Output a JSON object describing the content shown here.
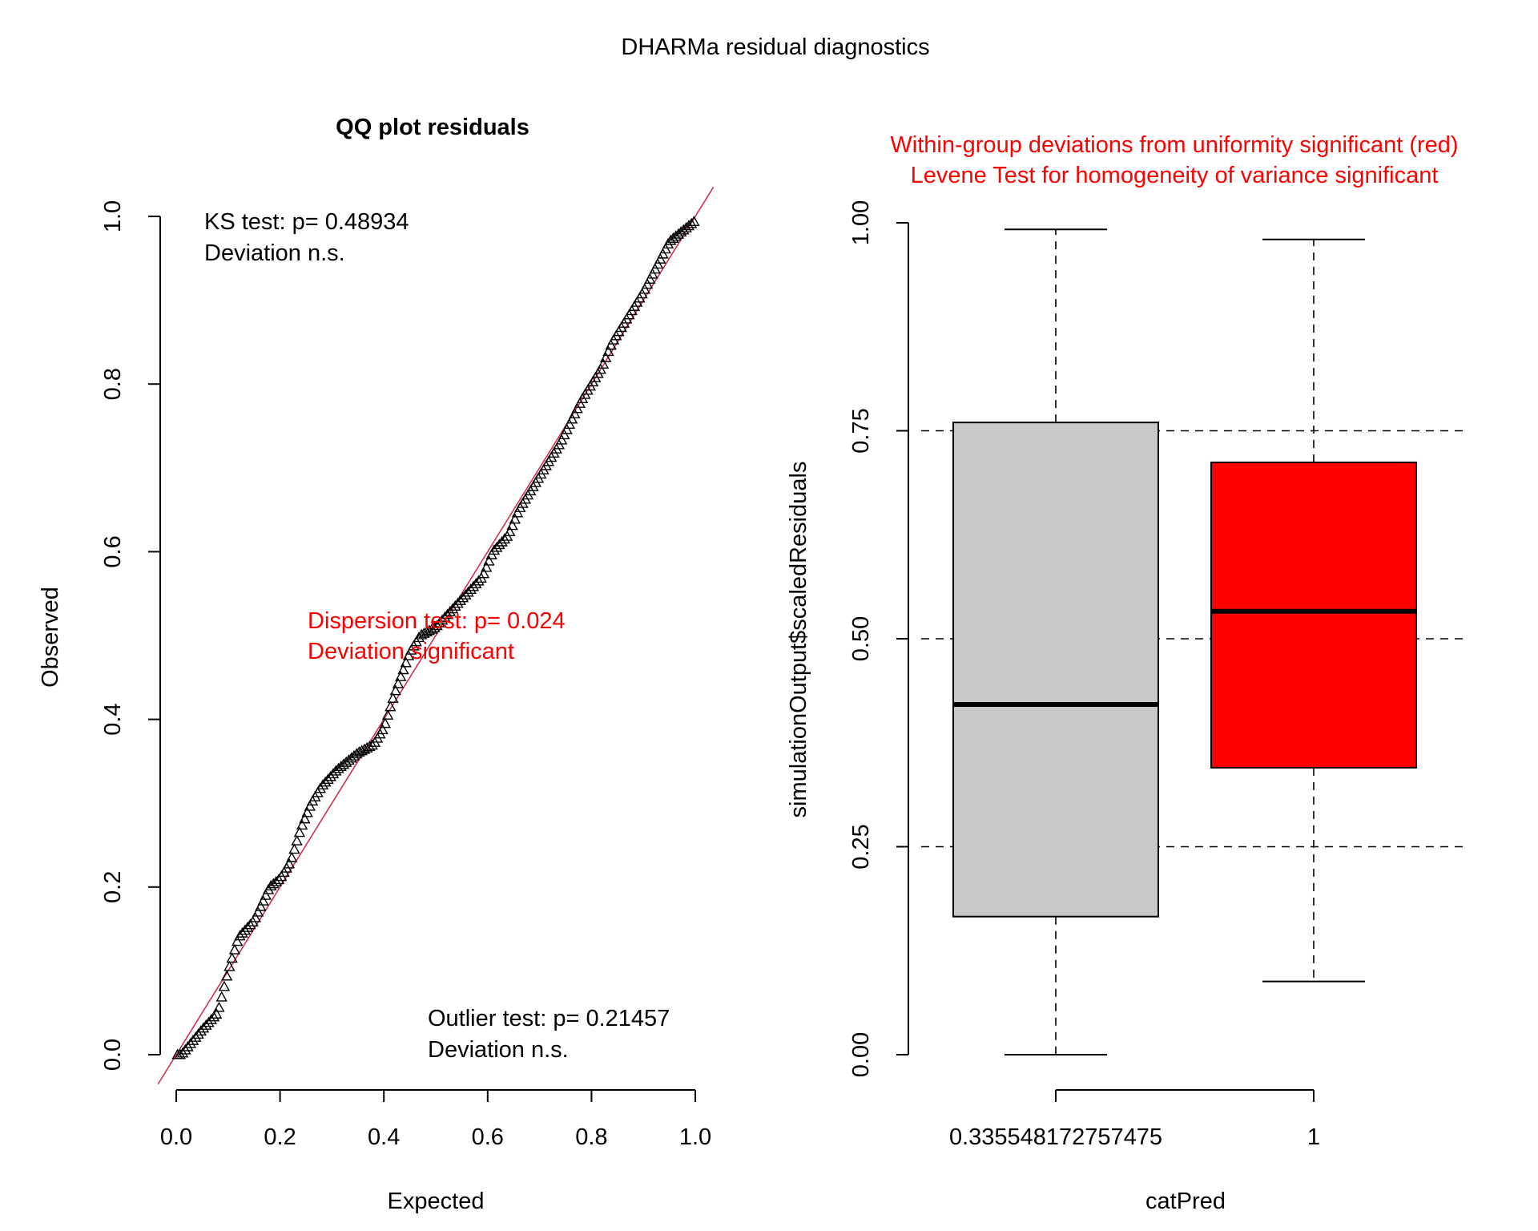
{
  "figure": {
    "title": "DHARMa residual diagnostics"
  },
  "colors": {
    "text": "#000000",
    "significant": "#ff0000",
    "reference_line": "#d03050",
    "box_gray": "#c8c8c8",
    "box_red": "#ff0000"
  },
  "qq_panel": {
    "title": "QQ plot residuals",
    "ks_text_1": "KS test: p= 0.48934",
    "ks_text_2": "Deviation  n.s.",
    "disp_text_1": "Dispersion test: p= 0.024",
    "disp_text_2": "Deviation  significant",
    "outlier_text_1": "Outlier test: p= 0.21457",
    "outlier_text_2": "Deviation  n.s."
  },
  "box_panel": {
    "title_line_1": "Within-group deviations from uniformity significant (red)",
    "title_line_2": "Levene Test for homogeneity of variance significant"
  },
  "chart_data": [
    {
      "type": "scatter",
      "title": "QQ plot residuals",
      "xlabel": "Expected",
      "ylabel": "Observed",
      "xlim": [
        0,
        1
      ],
      "ylim": [
        0,
        1
      ],
      "xticks": [
        "0.0",
        "0.2",
        "0.4",
        "0.6",
        "0.8",
        "1.0"
      ],
      "yticks": [
        "0.0",
        "0.2",
        "0.4",
        "0.6",
        "0.8",
        "1.0"
      ],
      "marker": "triangle",
      "reference_line": {
        "slope": 1,
        "intercept": 0
      },
      "curve_anchors": {
        "x": [
          0.01,
          0.05,
          0.08,
          0.1,
          0.12,
          0.15,
          0.18,
          0.2,
          0.22,
          0.24,
          0.26,
          0.28,
          0.31,
          0.35,
          0.38,
          0.4,
          0.42,
          0.45,
          0.47,
          0.5,
          0.53,
          0.56,
          0.59,
          0.61,
          0.64,
          0.66,
          0.7,
          0.74,
          0.78,
          0.8,
          0.82,
          0.84,
          0.86,
          0.9,
          0.95,
          1.0
        ],
        "y": [
          0.0,
          0.03,
          0.05,
          0.1,
          0.14,
          0.16,
          0.2,
          0.21,
          0.23,
          0.27,
          0.3,
          0.32,
          0.34,
          0.36,
          0.37,
          0.39,
          0.43,
          0.48,
          0.5,
          0.51,
          0.53,
          0.55,
          0.57,
          0.6,
          0.62,
          0.65,
          0.69,
          0.73,
          0.78,
          0.8,
          0.82,
          0.85,
          0.87,
          0.91,
          0.97,
          0.995
        ]
      },
      "n_points": 200
    },
    {
      "type": "box",
      "xlabel": "catPred",
      "ylabel": "simulationOutput$scaledResiduals",
      "ylim": [
        0,
        1
      ],
      "yticks": [
        "0.00",
        "0.25",
        "0.50",
        "0.75",
        "1.00"
      ],
      "reference_lines": [
        0.25,
        0.5,
        0.75
      ],
      "categories": [
        "0.335548172757475",
        "1"
      ],
      "boxes": [
        {
          "category": "0.335548172757475",
          "min": 0.0,
          "q1": 0.166,
          "median": 0.421,
          "q3": 0.76,
          "max": 0.992,
          "fill": "#c8c8c8"
        },
        {
          "category": "1",
          "min": 0.088,
          "q1": 0.345,
          "median": 0.533,
          "q3": 0.712,
          "max": 0.98,
          "fill": "#ff0000"
        }
      ]
    }
  ]
}
